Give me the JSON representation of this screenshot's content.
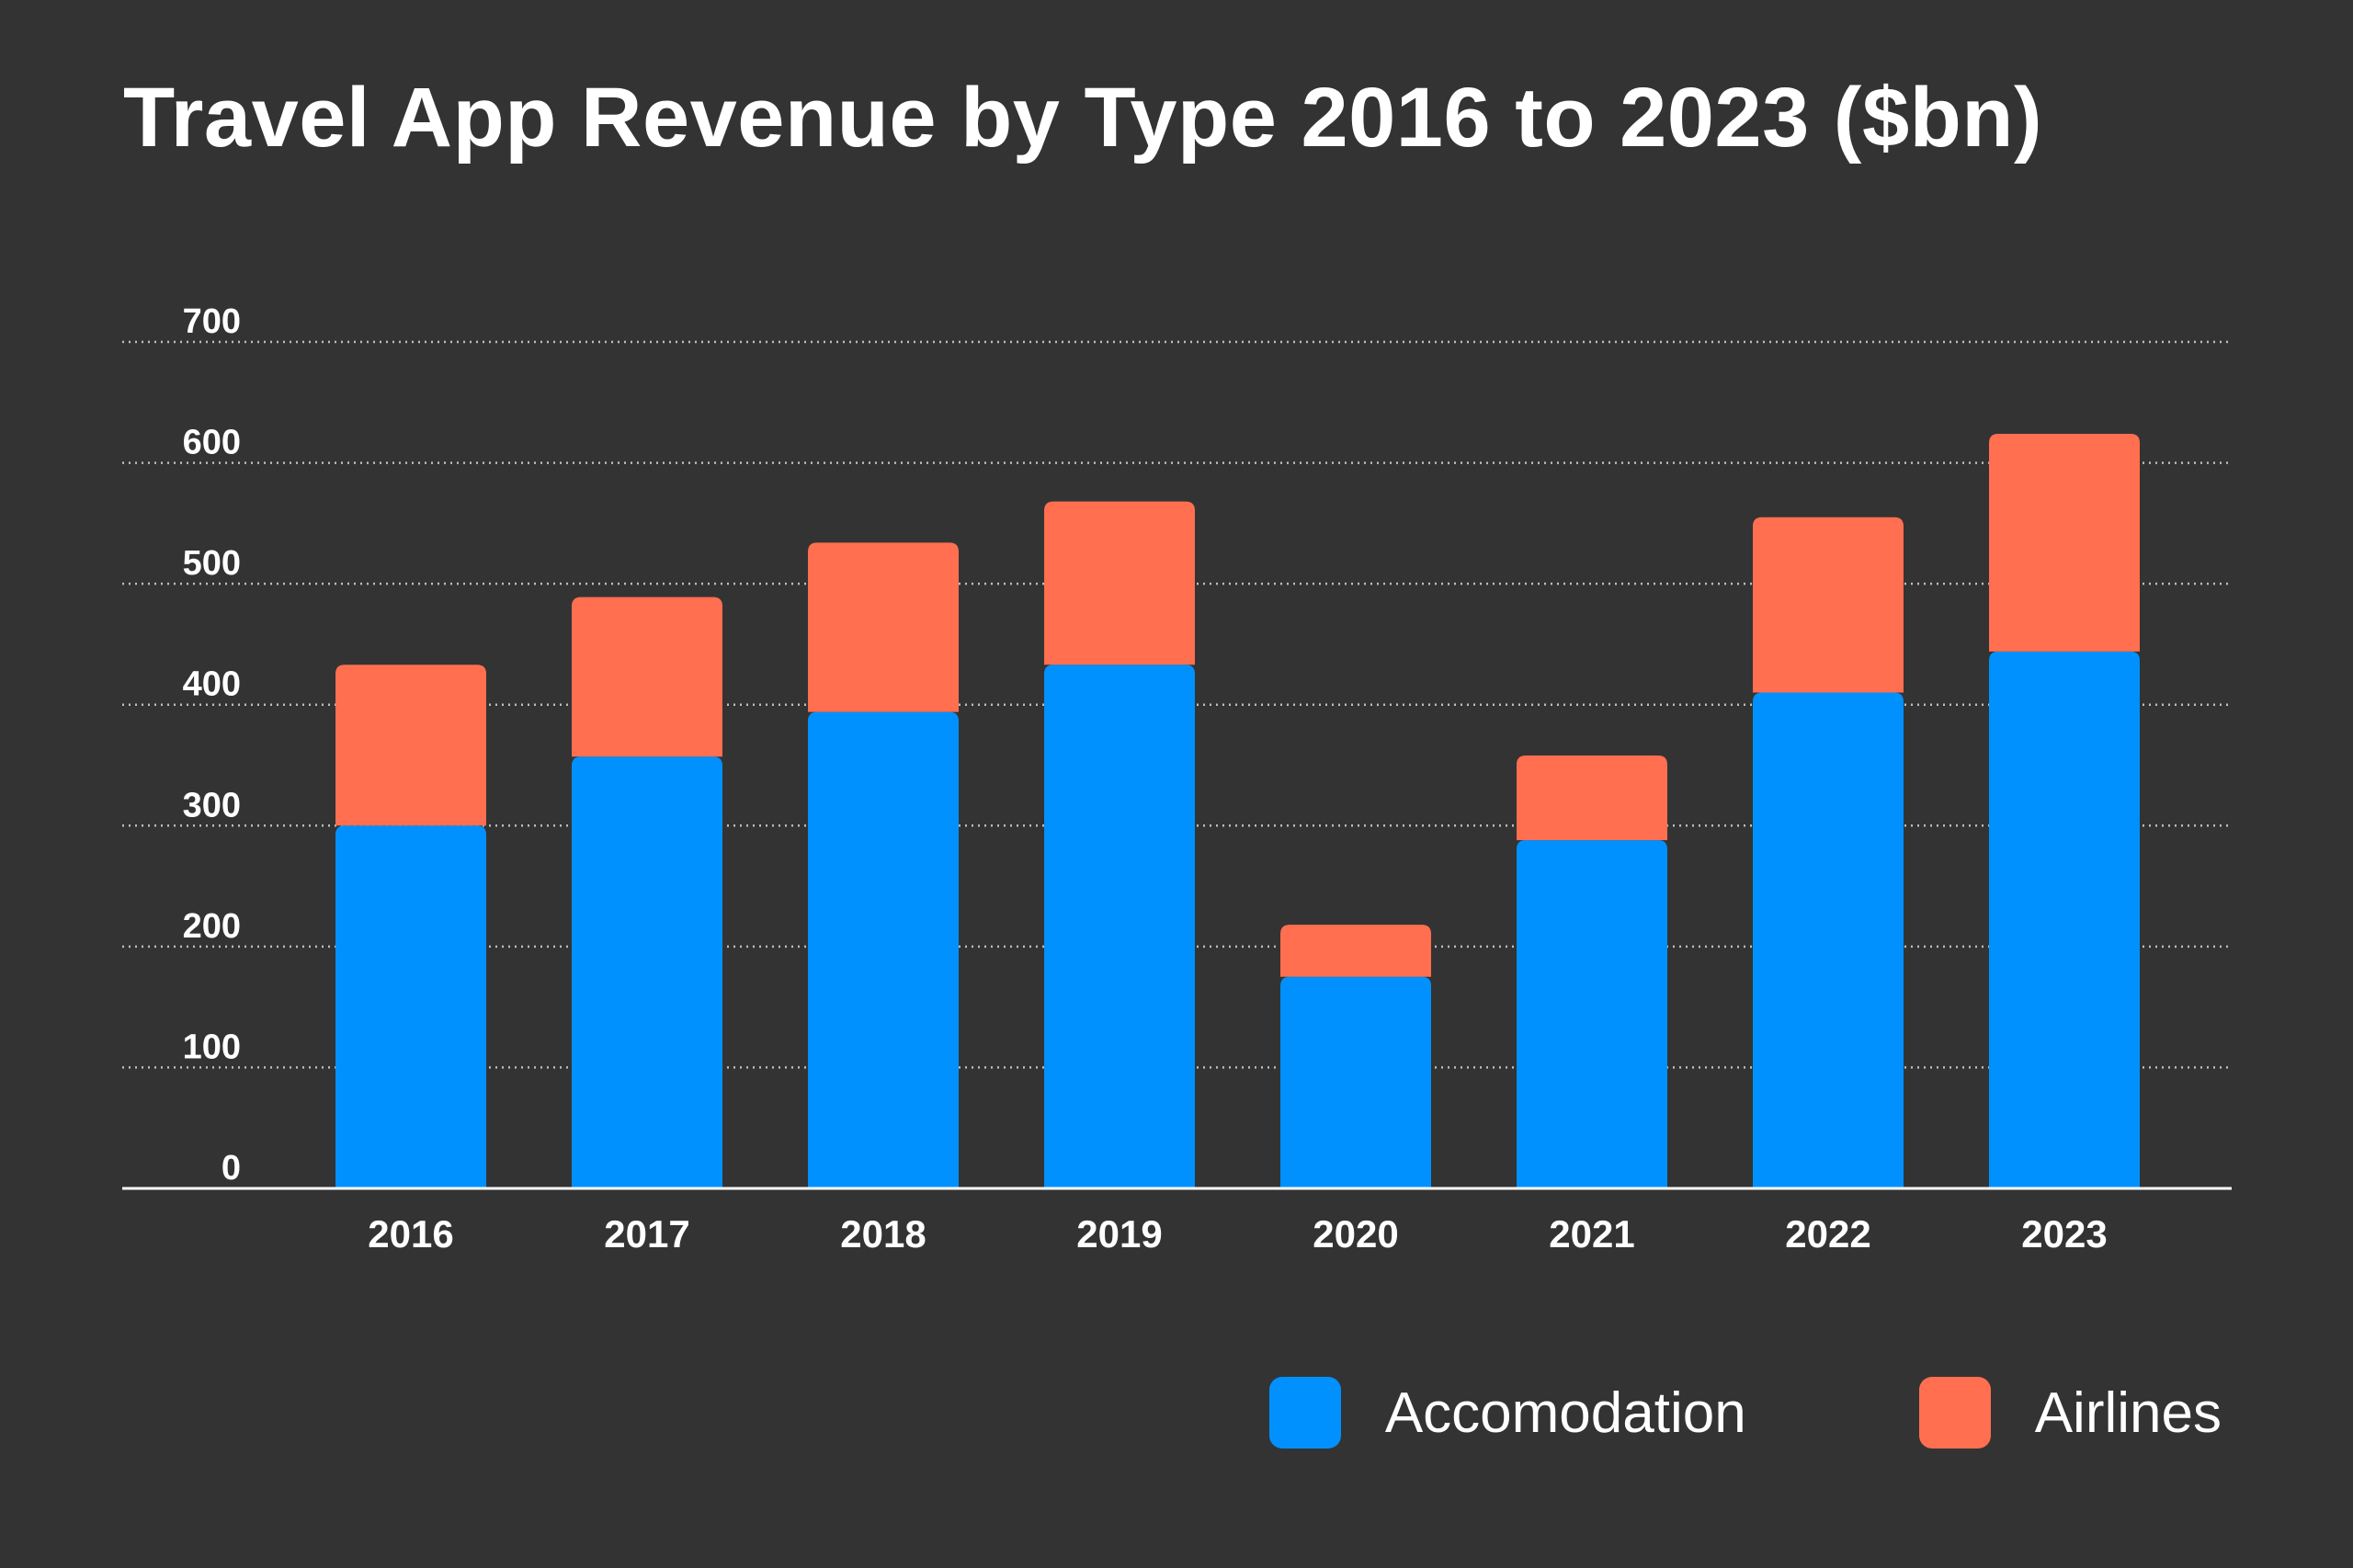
{
  "chart_data": {
    "type": "bar",
    "stacked": true,
    "title": "Travel App Revenue by Type 2016 to 2023 ($bn)",
    "xlabel": "",
    "ylabel": "",
    "categories": [
      "2016",
      "2017",
      "2018",
      "2019",
      "2020",
      "2021",
      "2022",
      "2023"
    ],
    "series": [
      {
        "name": "Accomodation",
        "color": "#0091ff",
        "values": [
          300,
          357,
          394,
          433,
          175,
          288,
          410,
          444
        ]
      },
      {
        "name": "Airlines",
        "color": "#ff6f50",
        "values": [
          133,
          132,
          140,
          135,
          43,
          70,
          145,
          180
        ]
      }
    ],
    "ylim": [
      0,
      700
    ],
    "yticks": [
      0,
      100,
      200,
      300,
      400,
      500,
      600,
      700
    ],
    "ytick_labels": [
      "0",
      "100",
      "200",
      "300",
      "400",
      "500",
      "600",
      "700"
    ],
    "grid": true,
    "legend_position": "bottom-right"
  },
  "colors": {
    "background": "#333333",
    "text": "#ffffff",
    "grid": "#bdbdbd"
  }
}
